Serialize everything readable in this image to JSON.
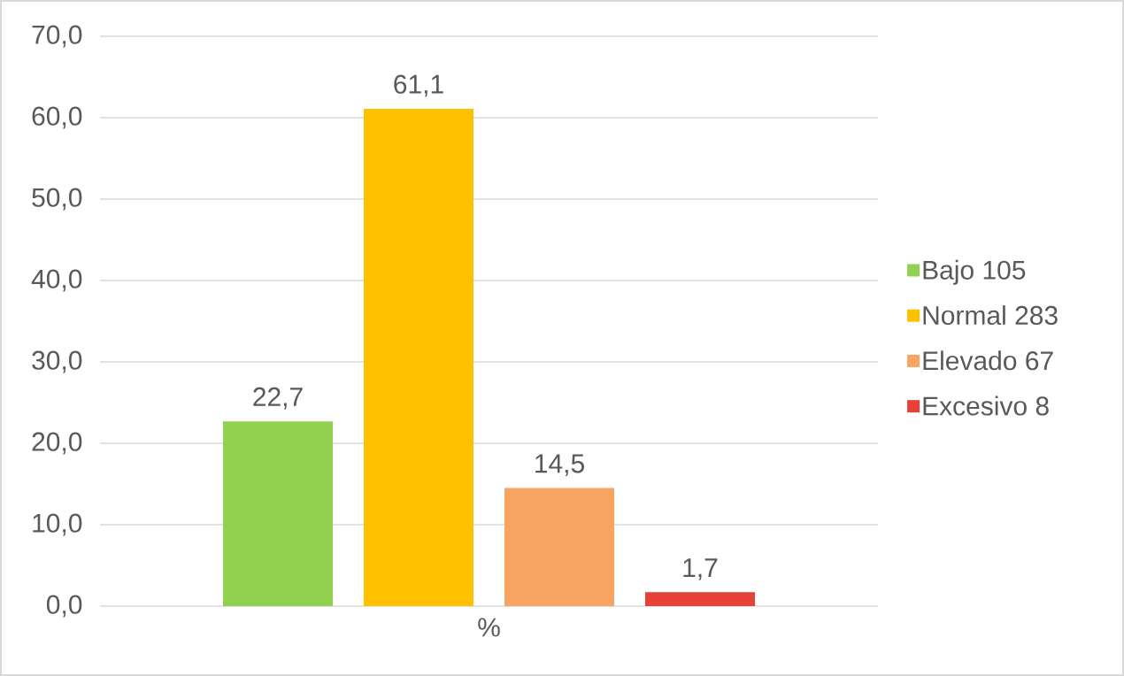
{
  "chart_data": {
    "type": "bar",
    "categories": [
      "%"
    ],
    "series": [
      {
        "name": "Bajo 105",
        "color": "#92d050",
        "values": [
          22.7
        ],
        "value_labels": [
          "22,7"
        ]
      },
      {
        "name": "Normal 283",
        "color": "#ffc000",
        "values": [
          61.1
        ],
        "value_labels": [
          "61,1"
        ]
      },
      {
        "name": "Elevado 67",
        "color": "#f8a462",
        "values": [
          14.5
        ],
        "value_labels": [
          "14,5"
        ]
      },
      {
        "name": "Excesivo 8",
        "color": "#e84138",
        "values": [
          1.7
        ],
        "value_labels": [
          "1,7"
        ]
      }
    ],
    "ylim": [
      0,
      70
    ],
    "yticks": [
      {
        "value": 0,
        "label": "0,0"
      },
      {
        "value": 10,
        "label": "10,0"
      },
      {
        "value": 20,
        "label": "20,0"
      },
      {
        "value": 30,
        "label": "30,0"
      },
      {
        "value": 40,
        "label": "40,0"
      },
      {
        "value": 50,
        "label": "50,0"
      },
      {
        "value": 60,
        "label": "60,0"
      },
      {
        "value": 70,
        "label": "70,0"
      }
    ],
    "grid": "y",
    "legend": "right"
  }
}
